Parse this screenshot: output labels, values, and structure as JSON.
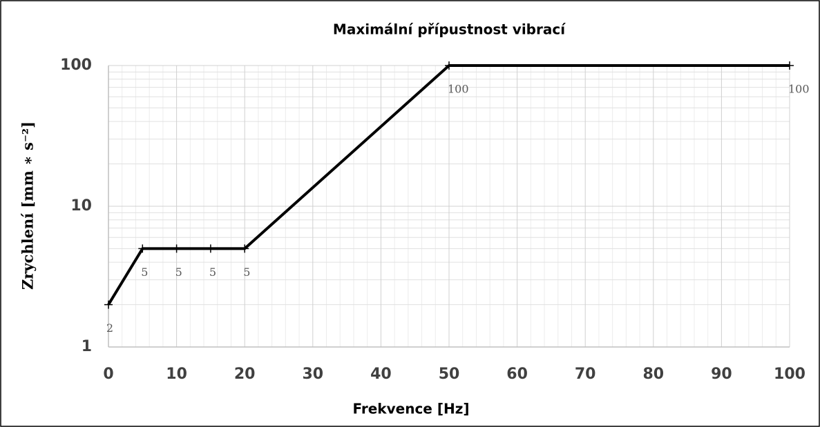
{
  "chart_data": {
    "type": "line",
    "title": "Maximální přípustnost vibrací",
    "x_label": "Frekvence [Hz]",
    "y_label": "Zrychlení [mm ∗ s⁻²]",
    "x": [
      0,
      5,
      10,
      15,
      20,
      50,
      100
    ],
    "series": [
      {
        "name": "Zrychlení",
        "color": "#000000",
        "values": [
          2,
          5,
          5,
          5,
          5,
          100,
          100
        ]
      }
    ],
    "xlim": [
      0,
      100
    ],
    "xticks": [
      0,
      10,
      20,
      30,
      40,
      50,
      60,
      70,
      80,
      90,
      100
    ],
    "ylim": [
      1,
      100
    ],
    "yticks": [
      1,
      10,
      100
    ],
    "y_scale": "log",
    "grid": true
  }
}
